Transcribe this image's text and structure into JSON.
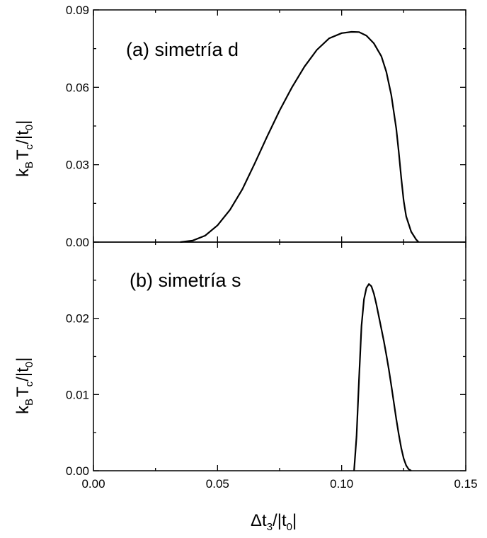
{
  "chart_data": [
    {
      "type": "line",
      "panel_label": "(a) simetría d",
      "xlabel": "Δt3/|t0|",
      "ylabel": "kBTc/|t0|",
      "xlim": [
        0.0,
        0.15
      ],
      "ylim": [
        0.0,
        0.09
      ],
      "xticks": [
        "0.00",
        "0.05",
        "0.10",
        "0.15"
      ],
      "yticks": [
        "0.00",
        "0.03",
        "0.06",
        "0.09"
      ],
      "grid": false,
      "series": [
        {
          "x": [
            0.035,
            0.04,
            0.045,
            0.05,
            0.055,
            0.06,
            0.065,
            0.07,
            0.075,
            0.08,
            0.085,
            0.09,
            0.095,
            0.1,
            0.104,
            0.107,
            0.11,
            0.113,
            0.116,
            0.118,
            0.12,
            0.122,
            0.123,
            0.124,
            0.125,
            0.126,
            0.128,
            0.13,
            0.131
          ],
          "y": [
            0.0,
            0.0006,
            0.0025,
            0.0065,
            0.0125,
            0.0205,
            0.0305,
            0.041,
            0.051,
            0.06,
            0.068,
            0.0745,
            0.079,
            0.081,
            0.0815,
            0.0814,
            0.08,
            0.077,
            0.072,
            0.066,
            0.057,
            0.044,
            0.035,
            0.025,
            0.016,
            0.01,
            0.004,
            0.001,
            0.0
          ]
        }
      ]
    },
    {
      "type": "line",
      "panel_label": "(b) simetría s",
      "xlabel": "Δt3/|t0|",
      "ylabel": "kBTc/|t0|",
      "xlim": [
        0.0,
        0.15
      ],
      "ylim": [
        0.0,
        0.03
      ],
      "xticks": [
        "0.00",
        "0.05",
        "0.10",
        "0.15"
      ],
      "yticks": [
        "0.00",
        "0.01",
        "0.02"
      ],
      "grid": false,
      "series": [
        {
          "x": [
            0.105,
            0.106,
            0.107,
            0.108,
            0.109,
            0.11,
            0.111,
            0.112,
            0.113,
            0.114,
            0.115,
            0.116,
            0.117,
            0.118,
            0.119,
            0.12,
            0.121,
            0.122,
            0.123,
            0.124,
            0.125,
            0.126,
            0.127,
            0.128
          ],
          "y": [
            0.0,
            0.0045,
            0.012,
            0.019,
            0.0225,
            0.024,
            0.0245,
            0.0242,
            0.0232,
            0.0218,
            0.0202,
            0.0186,
            0.017,
            0.0152,
            0.0133,
            0.0112,
            0.009,
            0.0068,
            0.0048,
            0.003,
            0.0016,
            0.0007,
            0.0002,
            0.0
          ]
        }
      ]
    }
  ],
  "labels": {
    "xlabel_main": "Δt",
    "xlabel_sub1": "3",
    "xlabel_mid": "/|t",
    "xlabel_sub2": "0",
    "xlabel_end": "|",
    "ylabel_k": "k",
    "ylabel_B": "B",
    "ylabel_T": "T",
    "ylabel_c": "c",
    "ylabel_mid": "/|t",
    "ylabel_0": "0",
    "ylabel_end": "|"
  }
}
